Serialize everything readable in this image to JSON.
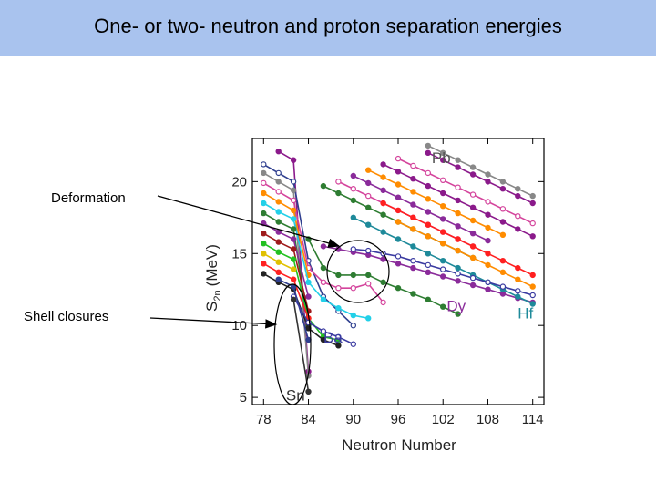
{
  "slide": {
    "title": "One- or two- neutron and proton separation energies",
    "annotations": {
      "deformation": "Deformation",
      "shell_closures": "Shell closures"
    }
  },
  "chart_data": {
    "type": "line",
    "xlabel": "Neutron Number",
    "ylabel": "S",
    "ylabel_sub": "2n",
    "ylabel_unit": "(MeV)",
    "xlim": [
      76.5,
      115.5
    ],
    "ylim": [
      4.5,
      23.0
    ],
    "x_ticks": [
      78,
      84,
      90,
      96,
      102,
      108,
      114
    ],
    "y_ticks": [
      5,
      10,
      15,
      20
    ],
    "grid": false,
    "element_labels": [
      {
        "text": "Pb",
        "x": 100.5,
        "y": 21.3,
        "color": "#555555"
      },
      {
        "text": "Dy",
        "x": 102.5,
        "y": 11.0,
        "color": "#8a2b9a"
      },
      {
        "text": "Hf",
        "x": 112.0,
        "y": 10.5,
        "color": "#1e8a9a"
      },
      {
        "text": "Ba",
        "x": 86.0,
        "y": 8.8,
        "color": "#3a3aa0"
      },
      {
        "text": "Sn",
        "x": 81.0,
        "y": 4.8,
        "color": "#333333"
      }
    ],
    "series": [
      {
        "color": "#8b1a8b",
        "marker": "filled",
        "x": [
          80,
          82,
          84
        ],
        "y": [
          22.1,
          21.5,
          6.8
        ]
      },
      {
        "color": "#2f3f8f",
        "marker": "open",
        "x": [
          78,
          80,
          82,
          84,
          86,
          88,
          90
        ],
        "y": [
          21.2,
          20.6,
          20.0,
          14.5,
          12.0,
          11.0,
          10.0
        ]
      },
      {
        "color": "#888888",
        "marker": "filled",
        "x": [
          78,
          80,
          82,
          84
        ],
        "y": [
          20.6,
          20.0,
          19.4,
          6.5
        ]
      },
      {
        "color": "#d4449c",
        "marker": "open",
        "x": [
          78,
          80,
          82,
          84,
          86,
          88,
          90,
          92,
          94
        ],
        "y": [
          19.9,
          19.3,
          18.7,
          14.0,
          13.0,
          12.6,
          12.6,
          12.9,
          11.6
        ]
      },
      {
        "color": "#ff8c00",
        "marker": "filled",
        "x": [
          78,
          80,
          82,
          84
        ],
        "y": [
          19.2,
          18.6,
          18.0,
          13.5
        ]
      },
      {
        "color": "#22d0e8",
        "marker": "filled",
        "x": [
          78,
          80,
          82,
          84,
          86,
          88,
          90,
          92
        ],
        "y": [
          18.5,
          17.9,
          17.4,
          13.0,
          11.8,
          11.2,
          10.7,
          10.5
        ]
      },
      {
        "color": "#2e7d32",
        "marker": "filled",
        "x": [
          78,
          80,
          82,
          84
        ],
        "y": [
          17.8,
          17.2,
          16.7,
          10.0
        ]
      },
      {
        "color": "#8a2b9a",
        "marker": "filled",
        "x": [
          78,
          80,
          82,
          84
        ],
        "y": [
          17.1,
          16.5,
          16.0,
          12.0
        ]
      },
      {
        "color": "#9e1a1a",
        "marker": "filled",
        "x": [
          78,
          80,
          82,
          84
        ],
        "y": [
          16.4,
          15.8,
          15.3,
          11.0
        ]
      },
      {
        "color": "#22c020",
        "marker": "filled",
        "x": [
          78,
          80,
          82,
          84,
          86,
          88
        ],
        "y": [
          15.7,
          15.1,
          14.6,
          10.5,
          9.2,
          9.0
        ]
      },
      {
        "color": "#e0c000",
        "marker": "filled",
        "x": [
          78,
          80,
          82
        ],
        "y": [
          15.0,
          14.4,
          13.9
        ]
      },
      {
        "color": "#ff2020",
        "marker": "filled",
        "x": [
          78,
          80,
          82,
          84
        ],
        "y": [
          14.3,
          13.7,
          13.2,
          10.5
        ]
      },
      {
        "color": "#222222",
        "marker": "filled",
        "x": [
          78,
          80,
          82,
          84,
          86,
          88
        ],
        "y": [
          13.6,
          13.0,
          12.5,
          9.8,
          9.0,
          8.6
        ]
      },
      {
        "color": "#2f3f8f",
        "marker": "filled",
        "x": [
          80,
          82,
          84
        ],
        "y": [
          13.2,
          12.7,
          9.0
        ]
      },
      {
        "color": "#3a3aa0",
        "marker": "open",
        "x": [
          82,
          84,
          86,
          88,
          90
        ],
        "y": [
          12.0,
          10.2,
          9.6,
          9.2,
          8.7
        ]
      },
      {
        "color": "#333333",
        "marker": "filled",
        "x": [
          82,
          84
        ],
        "y": [
          11.8,
          5.4
        ]
      },
      {
        "color": "#2e7d32",
        "marker": "filled",
        "x": [
          86,
          88,
          90,
          92,
          94,
          96,
          98,
          100,
          102,
          104,
          106
        ],
        "y": [
          19.7,
          19.2,
          18.7,
          18.2,
          17.7,
          17.2,
          16.7,
          16.2,
          15.7,
          15.2,
          14.7
        ]
      },
      {
        "color": "#2e7d32",
        "marker": "filled",
        "x": [
          84,
          86,
          88,
          90,
          92,
          94,
          96,
          98,
          100,
          102,
          104
        ],
        "y": [
          16.0,
          14.0,
          13.5,
          13.5,
          13.5,
          13.0,
          12.6,
          12.2,
          11.8,
          11.3,
          10.8
        ]
      },
      {
        "color": "#d4449c",
        "marker": "open",
        "x": [
          88,
          90,
          92,
          94,
          96,
          98,
          100,
          102,
          104,
          106
        ],
        "y": [
          20.0,
          19.5,
          19.0,
          18.5,
          18.0,
          17.5,
          17.0,
          16.5,
          16.0,
          15.5
        ]
      },
      {
        "color": "#8a2b9a",
        "marker": "filled",
        "x": [
          90,
          92,
          94,
          96,
          98,
          100,
          102,
          104,
          106,
          108
        ],
        "y": [
          20.4,
          19.9,
          19.4,
          18.9,
          18.4,
          17.9,
          17.4,
          16.9,
          16.4,
          15.9
        ]
      },
      {
        "color": "#ff8c00",
        "marker": "filled",
        "x": [
          92,
          94,
          96,
          98,
          100,
          102,
          104,
          106,
          108,
          110
        ],
        "y": [
          20.8,
          20.3,
          19.8,
          19.3,
          18.8,
          18.3,
          17.8,
          17.3,
          16.8,
          16.3
        ]
      },
      {
        "color": "#8b1a8b",
        "marker": "filled",
        "x": [
          94,
          96,
          98,
          100,
          102,
          104,
          106,
          108,
          110,
          112,
          114
        ],
        "y": [
          21.2,
          20.7,
          20.2,
          19.7,
          19.2,
          18.7,
          18.2,
          17.7,
          17.2,
          16.7,
          16.2
        ]
      },
      {
        "color": "#d4449c",
        "marker": "open",
        "x": [
          96,
          98,
          100,
          102,
          104,
          106,
          108,
          110,
          112,
          114
        ],
        "y": [
          21.6,
          21.1,
          20.6,
          20.1,
          19.6,
          19.1,
          18.6,
          18.1,
          17.6,
          17.1
        ]
      },
      {
        "color": "#8b1a8b",
        "marker": "filled",
        "x": [
          100,
          102,
          104,
          106,
          108,
          110,
          112,
          114
        ],
        "y": [
          22.0,
          21.5,
          21.0,
          20.5,
          20.0,
          19.5,
          19.0,
          18.5
        ]
      },
      {
        "color": "#888888",
        "marker": "filled",
        "x": [
          100,
          102,
          104,
          106,
          108,
          110,
          112,
          114
        ],
        "y": [
          22.5,
          22.0,
          21.5,
          21.0,
          20.5,
          20.0,
          19.5,
          19.0
        ]
      },
      {
        "color": "#8a2b9a",
        "marker": "filled",
        "x": [
          86,
          88,
          90,
          92,
          94,
          96,
          98,
          100,
          102,
          104,
          106,
          108,
          110,
          112,
          114
        ],
        "y": [
          15.5,
          15.3,
          15.1,
          14.9,
          14.6,
          14.3,
          14.0,
          13.7,
          13.4,
          13.1,
          12.8,
          12.5,
          12.2,
          11.9,
          11.6
        ]
      },
      {
        "color": "#1e8a9a",
        "marker": "filled",
        "x": [
          90,
          92,
          94,
          96,
          98,
          100,
          102,
          104,
          106,
          108,
          110,
          112,
          114
        ],
        "y": [
          17.5,
          17.0,
          16.5,
          16.0,
          15.5,
          15.0,
          14.5,
          14.0,
          13.5,
          13.0,
          12.5,
          12.0,
          11.5
        ]
      },
      {
        "color": "#ff2020",
        "marker": "filled",
        "x": [
          94,
          96,
          98,
          100,
          102,
          104,
          106,
          108,
          110,
          112,
          114
        ],
        "y": [
          18.5,
          18.0,
          17.5,
          17.0,
          16.5,
          16.0,
          15.5,
          15.0,
          14.5,
          14.0,
          13.5
        ]
      },
      {
        "color": "#3a3aa0",
        "marker": "open",
        "x": [
          90,
          92,
          94,
          96,
          98,
          100,
          102,
          104,
          106,
          108,
          110,
          112,
          114
        ],
        "y": [
          15.3,
          15.2,
          15.0,
          14.8,
          14.5,
          14.2,
          13.9,
          13.6,
          13.3,
          13.0,
          12.7,
          12.4,
          12.1
        ]
      },
      {
        "color": "#ff8c00",
        "marker": "filled",
        "x": [
          96,
          98,
          100,
          102,
          104,
          106,
          108,
          110,
          112,
          114
        ],
        "y": [
          17.2,
          16.7,
          16.2,
          15.7,
          15.2,
          14.7,
          14.2,
          13.7,
          13.2,
          12.7
        ]
      }
    ]
  }
}
